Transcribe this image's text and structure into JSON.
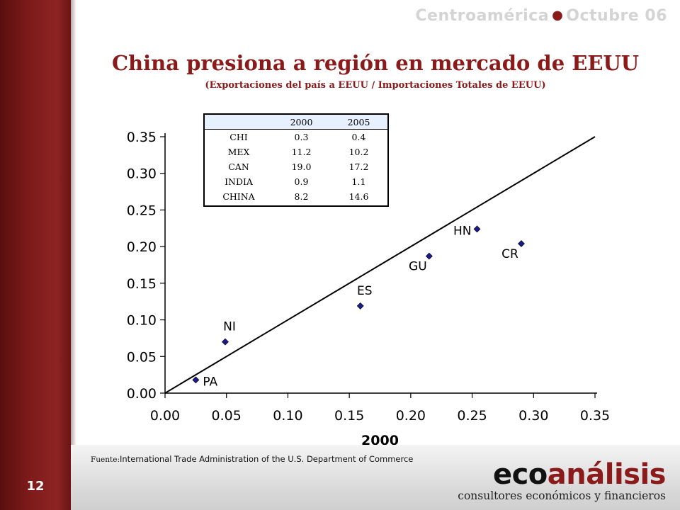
{
  "slide": {
    "page_number": "12",
    "header_region": "Centroamérica",
    "header_date": "Octubre 06",
    "title": "China presiona a región en mercado de EEUU",
    "subtitle": "(Exportaciones del país a EEUU / Importaciones Totales de EEUU)",
    "source_label": "Fuente:",
    "source_text": "International Trade Administration  of the U.S. Department of Commerce",
    "logo_eco": "eco",
    "logo_analisis": "análisis",
    "logo_tagline": "consultores económicos y financieros",
    "colors": {
      "accent": "#8b1a1a",
      "header_gray": "#d4d4d4",
      "marker": "#1a1a8c",
      "table_header_bg": "#e6f0ff"
    }
  },
  "table": {
    "headers": [
      "",
      "2000",
      "2005"
    ],
    "rows": [
      [
        "CHI",
        "0.3",
        "0.4"
      ],
      [
        "MEX",
        "11.2",
        "10.2"
      ],
      [
        "CAN",
        "19.0",
        "17.2"
      ],
      [
        "INDIA",
        "0.9",
        "1.1"
      ],
      [
        "CHINA",
        "8.2",
        "14.6"
      ]
    ]
  },
  "chart_data": {
    "type": "scatter",
    "xlabel": "2000",
    "ylabel": "",
    "xlim": [
      0,
      0.35
    ],
    "ylim": [
      0,
      0.35
    ],
    "x_ticks": [
      "0.00",
      "0.05",
      "0.10",
      "0.15",
      "0.20",
      "0.25",
      "0.30",
      "0.35"
    ],
    "y_ticks": [
      "0.00",
      "0.05",
      "0.10",
      "0.15",
      "0.20",
      "0.25",
      "0.30",
      "0.35"
    ],
    "grid": false,
    "reference_line": {
      "type": "diagonal",
      "from": [
        0,
        0
      ],
      "to": [
        0.35,
        0.35
      ]
    },
    "points": [
      {
        "label": "PA",
        "x": 0.025,
        "y": 0.018,
        "label_pos": "right"
      },
      {
        "label": "NI",
        "x": 0.049,
        "y": 0.07,
        "label_pos": "above"
      },
      {
        "label": "ES",
        "x": 0.159,
        "y": 0.119,
        "label_pos": "above"
      },
      {
        "label": "GU",
        "x": 0.215,
        "y": 0.187,
        "label_pos": "below-left"
      },
      {
        "label": "HN",
        "x": 0.254,
        "y": 0.224,
        "label_pos": "left"
      },
      {
        "label": "CR",
        "x": 0.29,
        "y": 0.204,
        "label_pos": "below-left"
      }
    ]
  }
}
